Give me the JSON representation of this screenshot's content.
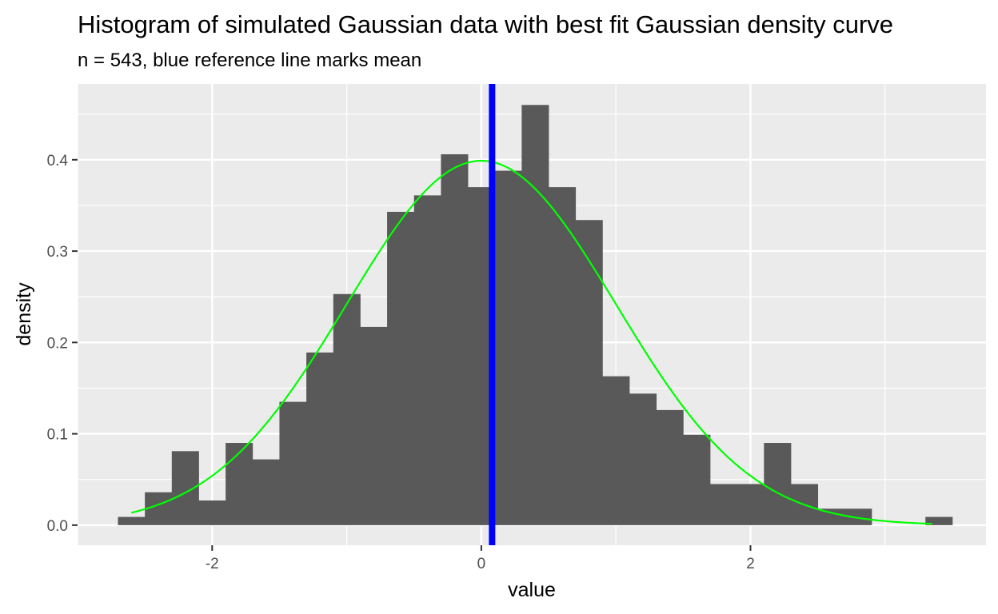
{
  "chart_data": {
    "type": "bar",
    "title": "Histogram of simulated Gaussian data with best fit Gaussian density curve",
    "subtitle": "n = 543, blue reference line marks mean",
    "xlabel": "value",
    "ylabel": "density",
    "xlim": [
      -3.0,
      3.75
    ],
    "ylim": [
      -0.022,
      0.483
    ],
    "x_ticks": [
      -2,
      0,
      2
    ],
    "x_tick_labels": [
      "-2",
      "0",
      "2"
    ],
    "y_ticks": [
      0.0,
      0.1,
      0.2,
      0.3,
      0.4
    ],
    "y_tick_labels": [
      "0.0",
      "0.1",
      "0.2",
      "0.3",
      "0.4"
    ],
    "grid": true,
    "bin_width": 0.2,
    "bins": [
      {
        "x0": -2.7,
        "x1": -2.5,
        "density": 0.009
      },
      {
        "x0": -2.5,
        "x1": -2.3,
        "density": 0.036
      },
      {
        "x0": -2.3,
        "x1": -2.1,
        "density": 0.081
      },
      {
        "x0": -2.1,
        "x1": -1.9,
        "density": 0.027
      },
      {
        "x0": -1.9,
        "x1": -1.7,
        "density": 0.09
      },
      {
        "x0": -1.7,
        "x1": -1.5,
        "density": 0.072
      },
      {
        "x0": -1.5,
        "x1": -1.3,
        "density": 0.135
      },
      {
        "x0": -1.3,
        "x1": -1.1,
        "density": 0.189
      },
      {
        "x0": -1.1,
        "x1": -0.9,
        "density": 0.253
      },
      {
        "x0": -0.9,
        "x1": -0.7,
        "density": 0.217
      },
      {
        "x0": -0.7,
        "x1": -0.5,
        "density": 0.343
      },
      {
        "x0": -0.5,
        "x1": -0.3,
        "density": 0.361
      },
      {
        "x0": -0.3,
        "x1": -0.1,
        "density": 0.406
      },
      {
        "x0": -0.1,
        "x1": 0.1,
        "density": 0.37
      },
      {
        "x0": 0.1,
        "x1": 0.3,
        "density": 0.388
      },
      {
        "x0": 0.3,
        "x1": 0.5,
        "density": 0.46
      },
      {
        "x0": 0.5,
        "x1": 0.7,
        "density": 0.37
      },
      {
        "x0": 0.7,
        "x1": 0.9,
        "density": 0.334
      },
      {
        "x0": 0.9,
        "x1": 1.1,
        "density": 0.163
      },
      {
        "x0": 1.1,
        "x1": 1.3,
        "density": 0.144
      },
      {
        "x0": 1.3,
        "x1": 1.5,
        "density": 0.126
      },
      {
        "x0": 1.5,
        "x1": 1.7,
        "density": 0.099
      },
      {
        "x0": 1.7,
        "x1": 1.9,
        "density": 0.045
      },
      {
        "x0": 1.9,
        "x1": 2.1,
        "density": 0.045
      },
      {
        "x0": 2.1,
        "x1": 2.3,
        "density": 0.09
      },
      {
        "x0": 2.3,
        "x1": 2.5,
        "density": 0.045
      },
      {
        "x0": 2.5,
        "x1": 2.7,
        "density": 0.018
      },
      {
        "x0": 2.7,
        "x1": 2.9,
        "density": 0.018
      },
      {
        "x0": 2.9,
        "x1": 3.1,
        "density": 0.0
      },
      {
        "x0": 3.1,
        "x1": 3.3,
        "density": 0.0
      },
      {
        "x0": 3.3,
        "x1": 3.5,
        "density": 0.009
      }
    ],
    "density_curve": {
      "mean": 0.0,
      "sd": 1.0,
      "x_range": [
        -2.6,
        3.35
      ],
      "color": "#00ff00"
    },
    "mean_line": {
      "x": 0.08,
      "color": "#0000ff"
    },
    "bar_color": "#595959",
    "panel_color": "#ebebeb"
  }
}
